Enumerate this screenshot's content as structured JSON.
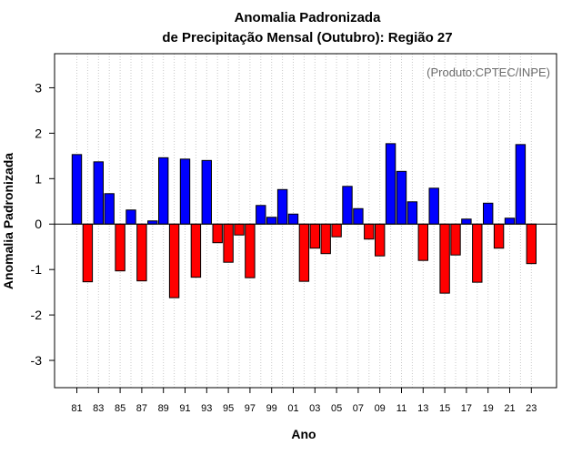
{
  "chart_data": {
    "type": "bar",
    "title": "Anomalia Padronizada",
    "subtitle": "de Precipitação Mensal (Outubro): Região 27",
    "xlabel": "Ano",
    "ylabel": "Anomalia Padronizada",
    "credit": "(Produto:CPTEC/INPE)",
    "ylim": [
      -3.6,
      3.75
    ],
    "yticks": [
      -3,
      -2,
      -1,
      0,
      1,
      2,
      3
    ],
    "ytick_labels": [
      "-3",
      "-2",
      "-1",
      "0",
      "1",
      "2",
      "3"
    ],
    "grid": "vertical dotted",
    "positive_color": "#0000ff",
    "negative_color": "#ff0000",
    "categories": [
      "81",
      "82",
      "83",
      "84",
      "85",
      "86",
      "87",
      "88",
      "89",
      "90",
      "91",
      "92",
      "93",
      "94",
      "95",
      "96",
      "97",
      "98",
      "99",
      "00",
      "01",
      "02",
      "03",
      "04",
      "05",
      "06",
      "07",
      "08",
      "09",
      "10",
      "11",
      "12",
      "13",
      "14",
      "15",
      "16",
      "17",
      "18",
      "19",
      "20",
      "21",
      "22",
      "23"
    ],
    "tick_labels": [
      "81",
      "83",
      "85",
      "87",
      "89",
      "91",
      "93",
      "95",
      "97",
      "99",
      "01",
      "03",
      "05",
      "07",
      "09",
      "11",
      "13",
      "15",
      "17",
      "19",
      "21",
      "23"
    ],
    "values": [
      1.53,
      -1.27,
      1.37,
      0.67,
      -1.03,
      0.31,
      -1.25,
      0.07,
      1.46,
      -1.62,
      1.43,
      -1.17,
      1.4,
      -0.41,
      -0.84,
      -0.24,
      -1.18,
      0.41,
      0.15,
      0.76,
      0.22,
      -1.26,
      -0.53,
      -0.65,
      -0.28,
      0.83,
      0.34,
      -0.33,
      -0.7,
      1.77,
      1.16,
      0.49,
      -0.8,
      0.79,
      -1.52,
      -0.68,
      0.11,
      -1.28,
      0.46,
      -0.53,
      0.13,
      1.75,
      -0.87
    ]
  }
}
